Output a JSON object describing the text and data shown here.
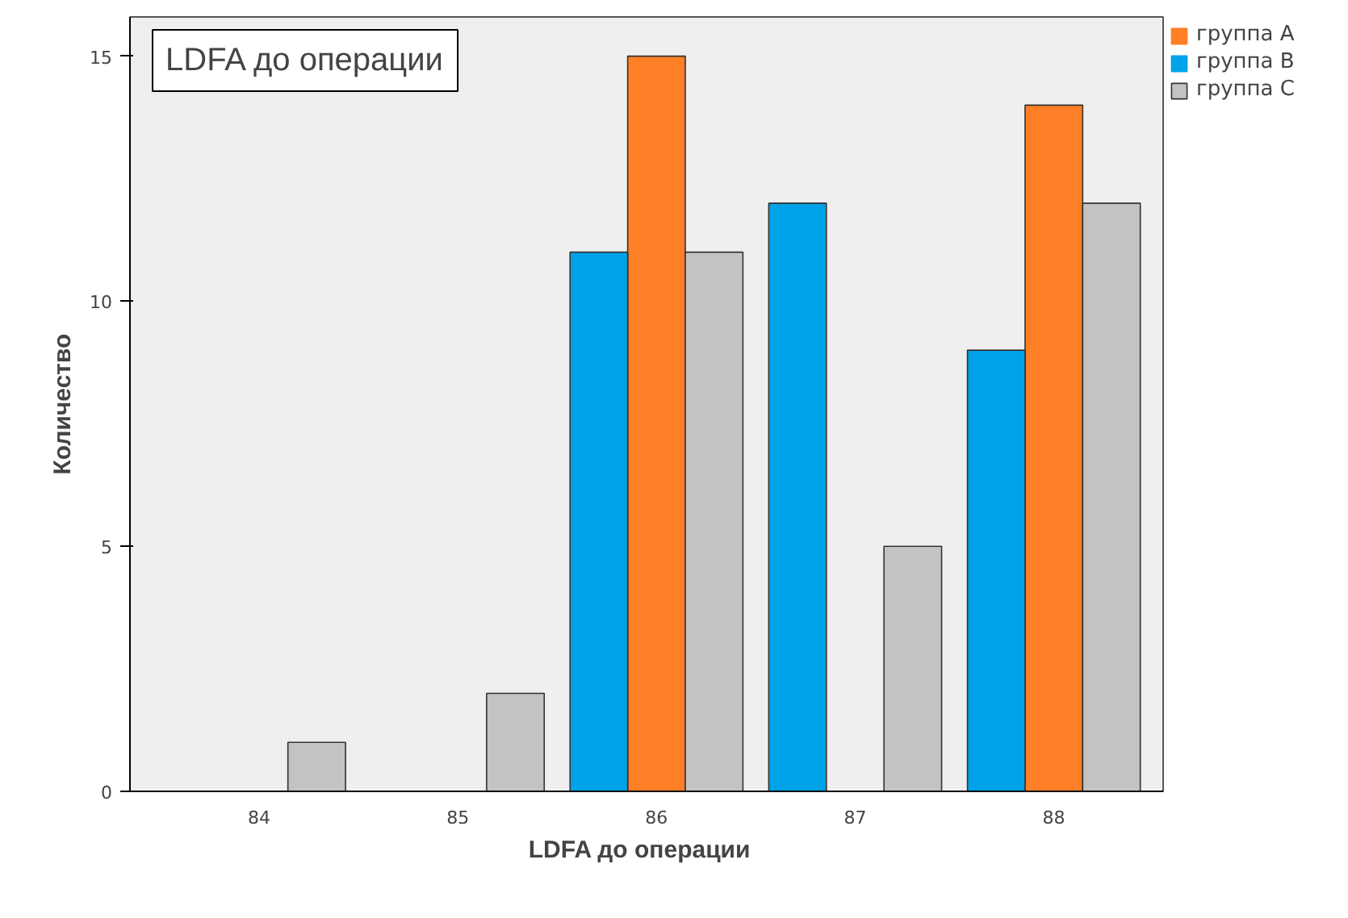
{
  "chart_data": {
    "type": "bar",
    "title": "LDFA до операции",
    "xlabel": "LDFA до   операции",
    "ylabel": "Количество",
    "categories": [
      "84",
      "85",
      "86",
      "87",
      "88"
    ],
    "series": [
      {
        "name": "группа A",
        "color": "#ff7f27",
        "values": [
          0,
          0,
          15,
          0,
          14
        ]
      },
      {
        "name": "группа B",
        "color": "#00a2e8",
        "values": [
          0,
          0,
          11,
          12,
          9
        ]
      },
      {
        "name": "группа C",
        "color": "#c3c3c3",
        "values": [
          1,
          2,
          11,
          5,
          12
        ]
      }
    ],
    "ylim": [
      0,
      15.8
    ],
    "yticks": [
      0,
      5,
      10,
      15
    ],
    "grid": false,
    "legend": "top right"
  }
}
